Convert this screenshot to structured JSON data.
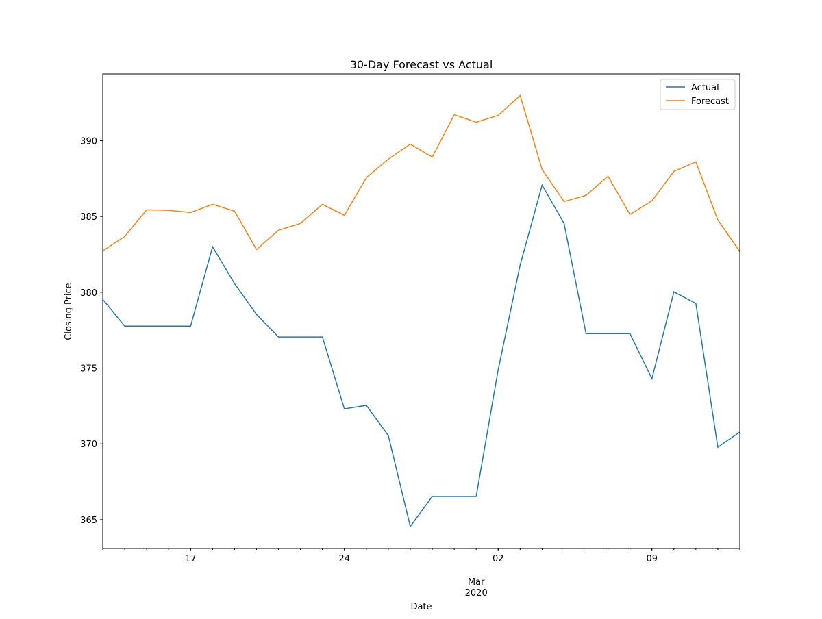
{
  "chart_data": {
    "type": "line",
    "title": "30-Day Forecast vs Actual",
    "x_label": "Date",
    "y_label": "Closing Price",
    "x": [
      "2020-02-13",
      "2020-02-14",
      "2020-02-15",
      "2020-02-16",
      "2020-02-17",
      "2020-02-18",
      "2020-02-19",
      "2020-02-20",
      "2020-02-21",
      "2020-02-22",
      "2020-02-23",
      "2020-02-24",
      "2020-02-25",
      "2020-02-26",
      "2020-02-27",
      "2020-02-28",
      "2020-02-29",
      "2020-03-01",
      "2020-03-02",
      "2020-03-03",
      "2020-03-04",
      "2020-03-05",
      "2020-03-06",
      "2020-03-07",
      "2020-03-08",
      "2020-03-09",
      "2020-03-10",
      "2020-03-11",
      "2020-03-12",
      "2020-03-13"
    ],
    "series": [
      {
        "name": "Actual",
        "color": "#1f77b4",
        "values": [
          379.53,
          377.77,
          377.77,
          377.77,
          377.77,
          383.0,
          380.57,
          378.54,
          377.05,
          377.05,
          377.05,
          372.31,
          372.54,
          370.55,
          364.55,
          366.53,
          366.53,
          366.53,
          374.88,
          381.79,
          387.07,
          384.54,
          377.27,
          377.27,
          377.27,
          374.3,
          380.03,
          379.26,
          369.78,
          370.78
        ]
      },
      {
        "name": "Forecast",
        "color": "#ff7f0e",
        "values": [
          382.73,
          383.68,
          385.44,
          385.4,
          385.26,
          385.8,
          385.35,
          382.82,
          384.09,
          384.54,
          385.8,
          385.08,
          387.56,
          388.78,
          389.77,
          388.92,
          391.71,
          391.22,
          391.67,
          392.98,
          388.1,
          385.98,
          386.39,
          387.65,
          385.13,
          386.03,
          387.97,
          388.6,
          384.77,
          382.69
        ]
      }
    ],
    "xlim": [
      "2020-02-13",
      "2020-03-13"
    ],
    "xticks": [
      {
        "value": "2020-02-17",
        "label": "17"
      },
      {
        "value": "2020-02-24",
        "label": "24"
      },
      {
        "value": "2020-03-02",
        "label": "02"
      },
      {
        "value": "2020-03-09",
        "label": "09"
      }
    ],
    "xticks_minor_labels": [
      {
        "value": "2020-03-01",
        "label": "Mar\n2020"
      }
    ],
    "ylim": [
      363.1,
      394.4
    ],
    "yticks": [
      365,
      370,
      375,
      380,
      385,
      390
    ],
    "grid": false,
    "legend": "upper right"
  }
}
